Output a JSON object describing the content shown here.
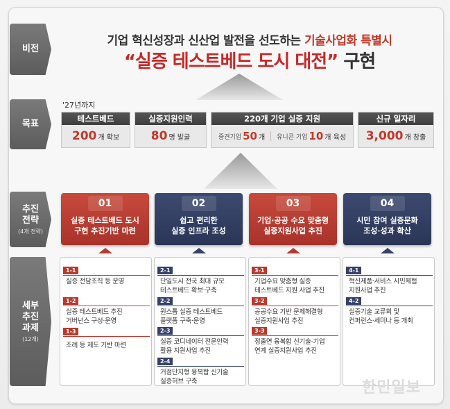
{
  "categories": {
    "vision": {
      "label": "비전"
    },
    "goal": {
      "label": "목표"
    },
    "strategy": {
      "label": "추진 전략",
      "sub": "(4개 전략)"
    },
    "tasks": {
      "label": "세부 추진 과제",
      "sub": "(12개)"
    }
  },
  "vision": {
    "line1_pre": "기업 혁신성장과 신산업 발전을 선도하는 ",
    "line1_highlight": "기술사업화 특별시",
    "line2_quote": "“실증 테스트베드 도시 대전”",
    "line2_suffix": " 구현"
  },
  "goals": {
    "year_note": "'27년까지",
    "items": [
      {
        "header": "테스트베드",
        "num": "200",
        "unit": "개 확보"
      },
      {
        "header": "실증지원인력",
        "num": "80",
        "unit": "명 발굴"
      },
      {
        "header": "220개 기업 실증 지원",
        "part1_label": "중견기업",
        "part1_num": "50",
        "part1_unit": "개",
        "part2_label": "유니콘 기업",
        "part2_num": "10",
        "part2_unit": "개 육성"
      },
      {
        "header": "신규 일자리",
        "num": "3,000",
        "unit": "개 창출"
      }
    ]
  },
  "strategies": [
    {
      "num": "01",
      "line1": "실증 테스트베드 도시",
      "line2": "구현 추진기반 마련",
      "color": "#b8392e"
    },
    {
      "num": "02",
      "line1": "쉽고 편리한",
      "line2": "실증 인프라 조성",
      "color": "#35416a"
    },
    {
      "num": "03",
      "line1": "기업·공공 수요 맞춤형",
      "line2": "실증지원사업 추진",
      "color": "#b8392e"
    },
    {
      "num": "04",
      "line1": "시민 참여 실증문화",
      "line2": "조성·성과 확산",
      "color": "#35416a"
    }
  ],
  "tasks": [
    [
      {
        "id": "1-1",
        "text": [
          "실증 전담조직 등 운영"
        ]
      },
      {
        "id": "1-2",
        "text": [
          "실증 테스트베드 추진",
          "거버넌스 구성·운영"
        ]
      },
      {
        "id": "1-3",
        "text": [
          "조례 등 제도 기반 마련"
        ]
      }
    ],
    [
      {
        "id": "2-1",
        "text": [
          "단일도시 전국 최대 규모",
          "테스트베드 확보·구축"
        ]
      },
      {
        "id": "2-2",
        "text": [
          "원스톱 실증 테스트베드",
          "플랫폼 구축·운영"
        ]
      },
      {
        "id": "2-3",
        "text": [
          "실증 코디네이터 전문인력",
          "활용 지원사업 추진"
        ]
      },
      {
        "id": "2-4",
        "text": [
          "거점단지형 융복합 신기술",
          "실증허브 구축"
        ]
      }
    ],
    [
      {
        "id": "3-1",
        "text": [
          "기업수요 맞춤형 실증",
          "테스트베드 지원 사업 추진"
        ]
      },
      {
        "id": "3-2",
        "text": [
          "공공수요 기반 문제해결형",
          "실증지원사업 추진"
        ]
      },
      {
        "id": "3-3",
        "text": [
          "정출연 융복합 신기술-기업",
          "연계 실증지원사업 추진"
        ]
      }
    ],
    [
      {
        "id": "4-1",
        "text": [
          "혁신제품·서비스 시민체험",
          "지원사업 추진"
        ]
      },
      {
        "id": "4-2",
        "text": [
          "실증기술 교류회 및",
          "컨퍼런스·세미나 등 개최"
        ]
      }
    ]
  ],
  "watermark": "한민일보",
  "colors": {
    "red": "#b8392e",
    "navy": "#35416a",
    "accent": "#c62828"
  }
}
